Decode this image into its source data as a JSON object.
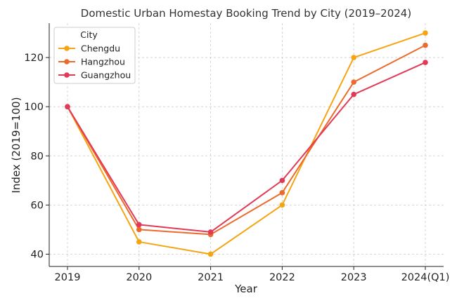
{
  "chart_data": {
    "type": "line",
    "title": "Domestic Urban Homestay Booking Trend by City (2019–2024)",
    "xlabel": "Year",
    "ylabel": "Index (2019=100)",
    "categories": [
      "2019",
      "2020",
      "2021",
      "2022",
      "2023",
      "2024(Q1)"
    ],
    "ylim": [
      35,
      134
    ],
    "yticks": [
      "40",
      "60",
      "80",
      "100",
      "120"
    ],
    "grid": true,
    "legend": {
      "title": "City",
      "placement": "top-left"
    },
    "series": [
      {
        "name": "Chengdu",
        "color": "#f5a514",
        "values": [
          100,
          45,
          40,
          60,
          120,
          130
        ]
      },
      {
        "name": "Hangzhou",
        "color": "#ec6a2c",
        "values": [
          100,
          50,
          48,
          65,
          110,
          125
        ]
      },
      {
        "name": "Guangzhou",
        "color": "#e23a56",
        "values": [
          100,
          52,
          49,
          70,
          105,
          118
        ]
      }
    ]
  }
}
